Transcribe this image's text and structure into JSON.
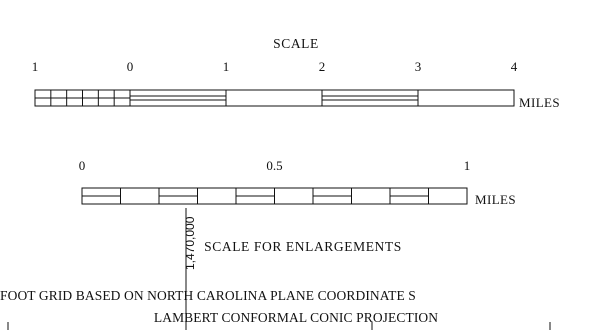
{
  "scale": {
    "title": "SCALE",
    "unit": "MILES",
    "tick_labels": [
      "1",
      "0",
      "1",
      "2",
      "3",
      "4"
    ]
  },
  "enlargement_scale": {
    "title": "SCALE FOR ENLARGEMENTS",
    "unit": "MILES",
    "tick_labels": [
      "0",
      "0.5",
      "1"
    ]
  },
  "grid_note": {
    "line1": "FOOT GRID BASED ON NORTH CAROLINA PLANE COORDINATE S",
    "line2": "LAMBERT CONFORMAL CONIC PROJECTION"
  },
  "grid_tick_label": "1,470,000",
  "colors": {
    "ink": "#111111",
    "background": "#ffffff"
  }
}
